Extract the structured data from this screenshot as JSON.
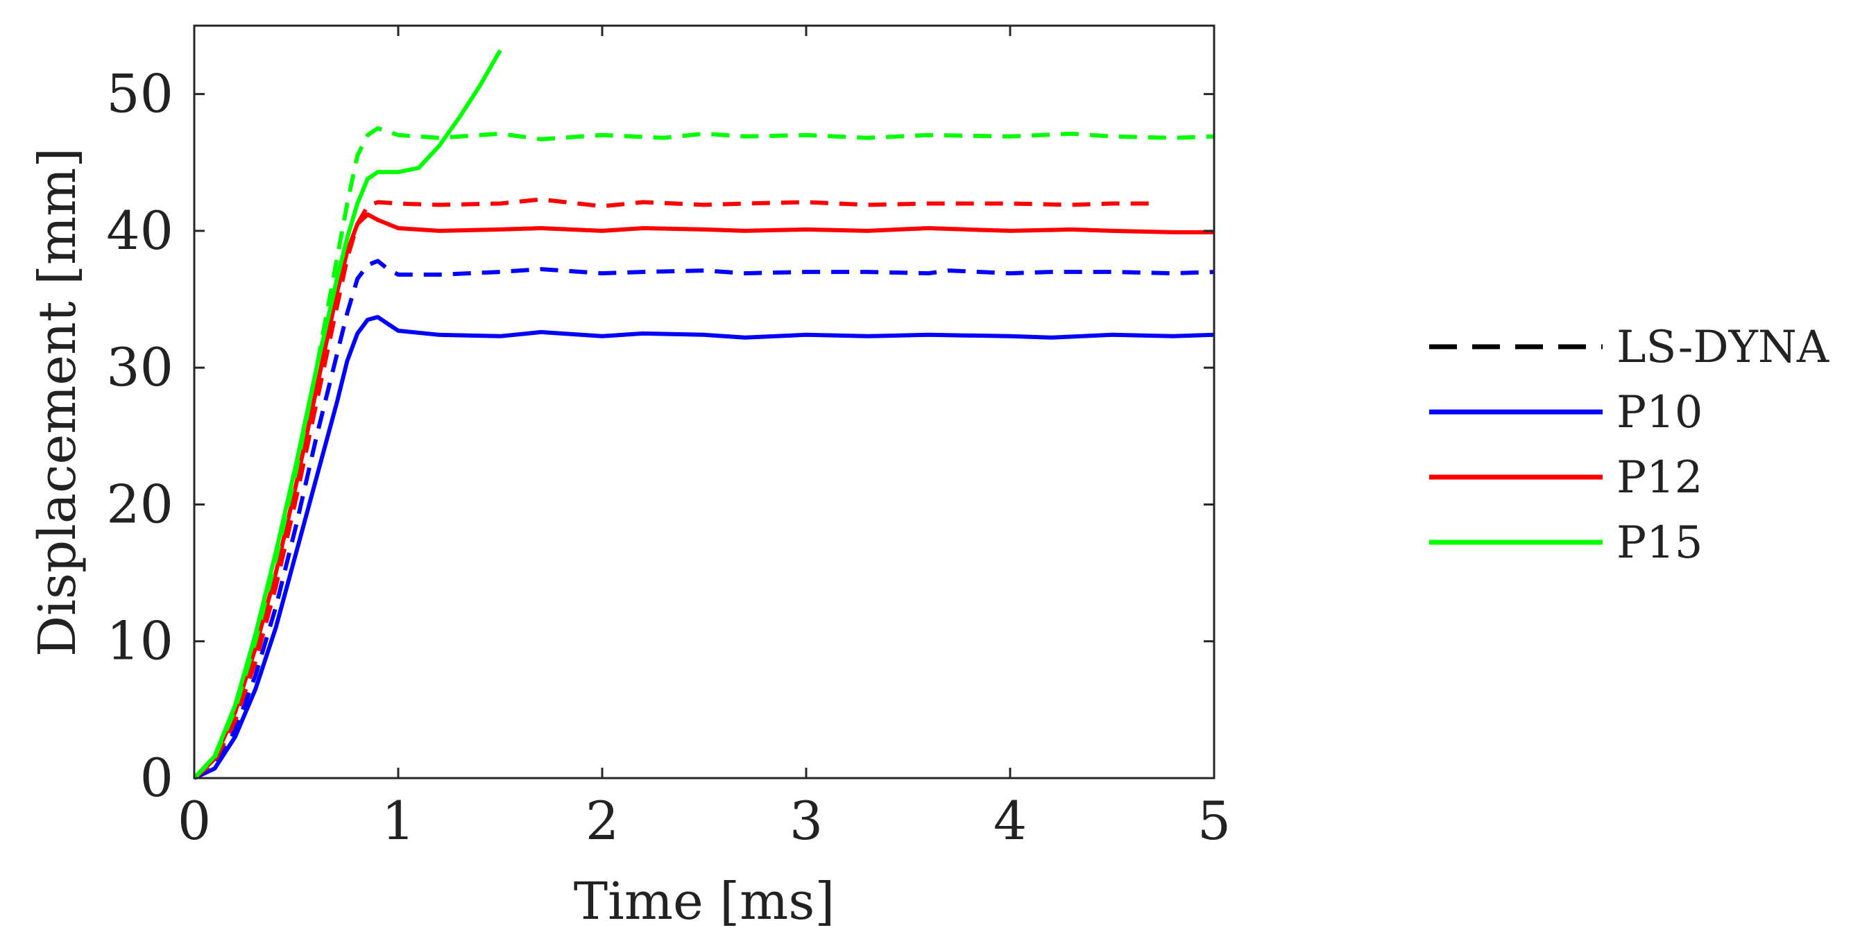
{
  "chart_data": {
    "type": "line",
    "title": "",
    "xlabel": "Time [ms]",
    "ylabel": "Displacement [mm]",
    "xlim": [
      0,
      5
    ],
    "ylim": [
      0,
      55
    ],
    "xticks": [
      "0",
      "1",
      "2",
      "3",
      "4",
      "5"
    ],
    "yticks": [
      "0",
      "10",
      "20",
      "30",
      "40",
      "50"
    ],
    "xtick_values": [
      0,
      1,
      2,
      3,
      4,
      5
    ],
    "ytick_values": [
      0,
      10,
      20,
      30,
      40,
      50
    ],
    "grid": false,
    "legend_position": "right",
    "legend": [
      {
        "label": "LS-DYNA",
        "style": "dashed",
        "color": "#000000"
      },
      {
        "label": "P10",
        "style": "solid",
        "color": "#0000ff"
      },
      {
        "label": "P12",
        "style": "solid",
        "color": "#ff0000"
      },
      {
        "label": "P15",
        "style": "solid",
        "color": "#00ff00"
      }
    ],
    "series": [
      {
        "name": "P10 (LS-DYNA)",
        "color": "#0000ff",
        "style": "dashed",
        "x": [
          0,
          0.1,
          0.2,
          0.3,
          0.4,
          0.5,
          0.6,
          0.7,
          0.75,
          0.8,
          0.85,
          0.9,
          0.95,
          1.0,
          1.2,
          1.5,
          1.7,
          2.0,
          2.2,
          2.5,
          2.7,
          3.0,
          3.3,
          3.6,
          3.7,
          4.0,
          4.2,
          4.5,
          4.8,
          5.0
        ],
        "y": [
          0,
          0.8,
          3.5,
          7.5,
          12.5,
          18.5,
          25,
          31,
          34,
          36.5,
          37.5,
          37.8,
          37.2,
          36.8,
          36.8,
          37,
          37.2,
          36.9,
          37,
          37.1,
          36.9,
          37,
          37,
          36.9,
          37.1,
          36.9,
          37,
          37,
          36.9,
          37
        ]
      },
      {
        "name": "P10",
        "color": "#0000ff",
        "style": "solid",
        "x": [
          0,
          0.1,
          0.2,
          0.3,
          0.4,
          0.5,
          0.6,
          0.7,
          0.75,
          0.8,
          0.85,
          0.9,
          0.95,
          1.0,
          1.2,
          1.5,
          1.7,
          2.0,
          2.2,
          2.5,
          2.7,
          3.0,
          3.3,
          3.6,
          4.0,
          4.2,
          4.5,
          4.8,
          5.0
        ],
        "y": [
          0,
          0.7,
          3,
          6.5,
          11,
          16.5,
          22,
          27.5,
          30.5,
          32.5,
          33.5,
          33.7,
          33.2,
          32.7,
          32.4,
          32.3,
          32.6,
          32.3,
          32.5,
          32.4,
          32.2,
          32.4,
          32.3,
          32.4,
          32.3,
          32.2,
          32.4,
          32.3,
          32.4
        ]
      },
      {
        "name": "P12 (LS-DYNA)",
        "color": "#ff0000",
        "style": "dashed",
        "x": [
          0,
          0.1,
          0.2,
          0.3,
          0.4,
          0.5,
          0.6,
          0.7,
          0.75,
          0.8,
          0.85,
          0.9,
          1.0,
          1.2,
          1.5,
          1.7,
          2.0,
          2.2,
          2.5,
          2.7,
          3.0,
          3.3,
          3.6,
          4.0,
          4.3,
          4.5,
          4.72
        ],
        "y": [
          0,
          1.2,
          4.2,
          8.5,
          14,
          20.5,
          27.5,
          34.5,
          38,
          40.5,
          41.8,
          42.1,
          42,
          41.9,
          42,
          42.3,
          41.8,
          42.1,
          41.9,
          42,
          42.1,
          41.9,
          42,
          42,
          41.9,
          42,
          42
        ]
      },
      {
        "name": "P12",
        "color": "#ff0000",
        "style": "solid",
        "x": [
          0,
          0.1,
          0.2,
          0.3,
          0.4,
          0.5,
          0.6,
          0.7,
          0.75,
          0.8,
          0.85,
          0.9,
          1.0,
          1.2,
          1.5,
          1.7,
          2.0,
          2.2,
          2.5,
          2.7,
          3.0,
          3.3,
          3.6,
          4.0,
          4.3,
          4.5,
          4.8,
          5.0
        ],
        "y": [
          0,
          1.4,
          4.8,
          9.5,
          15,
          21.5,
          28.5,
          35.5,
          38.5,
          40.5,
          41.2,
          40.8,
          40.2,
          40,
          40.1,
          40.2,
          40,
          40.2,
          40.1,
          40,
          40.1,
          40,
          40.2,
          40,
          40.1,
          40,
          39.9,
          39.9
        ]
      },
      {
        "name": "P15 (LS-DYNA)",
        "color": "#00ff00",
        "style": "dashed",
        "x": [
          0,
          0.1,
          0.2,
          0.3,
          0.4,
          0.5,
          0.6,
          0.7,
          0.75,
          0.8,
          0.85,
          0.9,
          1.0,
          1.2,
          1.5,
          1.7,
          2.0,
          2.3,
          2.5,
          2.7,
          3.0,
          3.3,
          3.6,
          4.0,
          4.3,
          4.5,
          4.8,
          5.0
        ],
        "y": [
          0,
          1.5,
          5,
          10,
          16,
          22.5,
          30,
          38,
          42,
          45.5,
          47,
          47.5,
          47,
          46.8,
          47.1,
          46.7,
          47,
          46.8,
          47.1,
          46.9,
          47,
          46.8,
          47,
          46.9,
          47.1,
          46.9,
          46.8,
          46.9
        ]
      },
      {
        "name": "P15",
        "color": "#00ff00",
        "style": "solid",
        "x": [
          0,
          0.1,
          0.2,
          0.3,
          0.4,
          0.5,
          0.6,
          0.7,
          0.75,
          0.8,
          0.85,
          0.9,
          1.0,
          1.1,
          1.2,
          1.3,
          1.4,
          1.5
        ],
        "y": [
          0,
          1.6,
          5.3,
          10.5,
          16.5,
          23,
          30,
          36.5,
          39.5,
          42,
          43.8,
          44.3,
          44.3,
          44.6,
          46.2,
          48.3,
          50.6,
          53.2
        ]
      }
    ]
  }
}
